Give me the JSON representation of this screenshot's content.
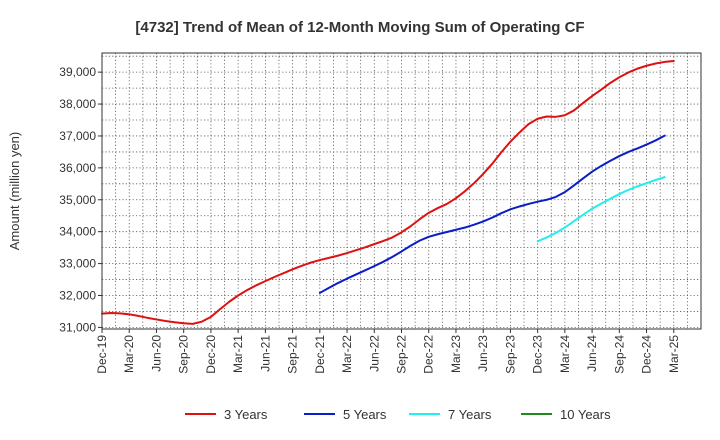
{
  "chart_data": {
    "type": "line",
    "title": "[4732]  Trend of Mean of 12-Month Moving Sum of Operating CF",
    "xlabel": "",
    "ylabel": "Amount (million yen)",
    "ylim": [
      30950,
      39600
    ],
    "yticks": [
      31000,
      32000,
      33000,
      34000,
      35000,
      36000,
      37000,
      38000,
      39000
    ],
    "ytick_labels": [
      "31,000",
      "32,000",
      "33,000",
      "34,000",
      "35,000",
      "36,000",
      "37,000",
      "38,000",
      "39,000"
    ],
    "xlim": [
      0,
      66
    ],
    "x_start": "Dec-19",
    "x_tick_step_months": 3,
    "x_tick_labels": [
      "Dec-19",
      "Mar-20",
      "Jun-20",
      "Sep-20",
      "Dec-20",
      "Mar-21",
      "Jun-21",
      "Sep-21",
      "Dec-21",
      "Mar-22",
      "Jun-22",
      "Sep-22",
      "Dec-22",
      "Mar-23",
      "Jun-23",
      "Sep-23",
      "Dec-23",
      "Mar-24",
      "Jun-24",
      "Sep-24",
      "Dec-24",
      "Mar-25"
    ],
    "grid": true,
    "legend_position": "bottom",
    "series": [
      {
        "name": "3 Years",
        "color": "#dd1111",
        "start_index": 0,
        "values": [
          31430,
          31450,
          31440,
          31410,
          31360,
          31300,
          31250,
          31200,
          31160,
          31130,
          31110,
          31180,
          31330,
          31570,
          31800,
          32000,
          32170,
          32320,
          32450,
          32580,
          32700,
          32820,
          32930,
          33030,
          33110,
          33180,
          33250,
          33330,
          33420,
          33510,
          33610,
          33710,
          33820,
          33980,
          34170,
          34390,
          34590,
          34740,
          34870,
          35050,
          35270,
          35520,
          35810,
          36130,
          36490,
          36820,
          37110,
          37370,
          37540,
          37610,
          37600,
          37650,
          37800,
          38030,
          38250,
          38450,
          38660,
          38840,
          38990,
          39110,
          39200,
          39270,
          39320,
          39350
        ]
      },
      {
        "name": "5 Years",
        "color": "#0a1ec8",
        "start_index": 24,
        "values": [
          32080,
          32240,
          32390,
          32530,
          32660,
          32790,
          32920,
          33060,
          33210,
          33380,
          33560,
          33720,
          33840,
          33920,
          33990,
          34060,
          34130,
          34220,
          34320,
          34440,
          34580,
          34700,
          34790,
          34870,
          34940,
          35000,
          35090,
          35240,
          35450,
          35670,
          35880,
          36060,
          36220,
          36370,
          36500,
          36610,
          36730,
          36860,
          37010
        ]
      },
      {
        "name": "7 Years",
        "color": "#22eeee",
        "start_index": 48,
        "values": [
          33700,
          33820,
          33960,
          34130,
          34330,
          34530,
          34720,
          34880,
          35030,
          35180,
          35310,
          35420,
          35520,
          35620,
          35710
        ]
      },
      {
        "name": "10 Years",
        "color": "#228822",
        "start_index": null,
        "values": []
      }
    ]
  }
}
